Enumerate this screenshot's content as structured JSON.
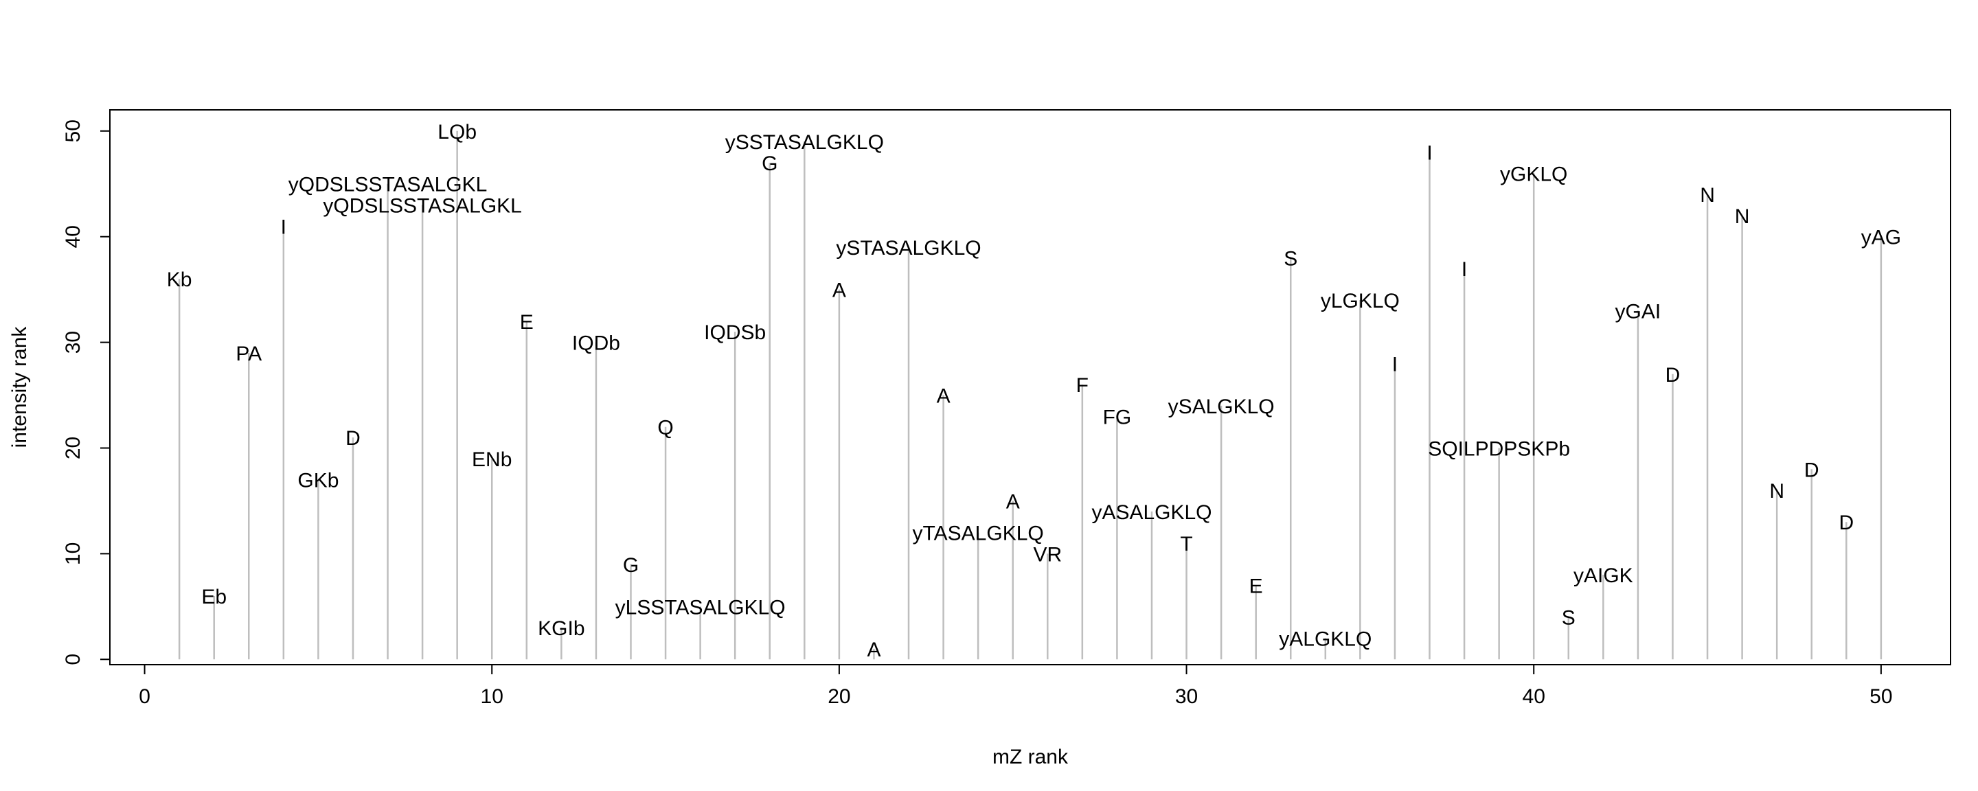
{
  "chart_data": {
    "type": "stem",
    "title": "",
    "xlabel": "mZ rank",
    "ylabel": "intensity rank",
    "xlim": [
      -1,
      52
    ],
    "ylim": [
      -0.5,
      52
    ],
    "xticks": [
      0,
      10,
      20,
      30,
      40,
      50
    ],
    "yticks": [
      0,
      10,
      20,
      30,
      40,
      50
    ],
    "grid": false,
    "stem_color": "#bebebe",
    "points": [
      {
        "x": 1,
        "y": 36,
        "label": "Kb"
      },
      {
        "x": 2,
        "y": 6,
        "label": "Eb"
      },
      {
        "x": 3,
        "y": 29,
        "label": "PA"
      },
      {
        "x": 4,
        "y": 41,
        "label": "I"
      },
      {
        "x": 5,
        "y": 17,
        "label": "GKb"
      },
      {
        "x": 6,
        "y": 21,
        "label": "D"
      },
      {
        "x": 7,
        "y": 45,
        "label": "yQDSLSSTASALGKL"
      },
      {
        "x": 8,
        "y": 43,
        "label": "yQDSLSSTASALGKL"
      },
      {
        "x": 9,
        "y": 50,
        "label": "LQb"
      },
      {
        "x": 10,
        "y": 19,
        "label": "ENb"
      },
      {
        "x": 11,
        "y": 32,
        "label": "E"
      },
      {
        "x": 12,
        "y": 3,
        "label": "KGIb"
      },
      {
        "x": 13,
        "y": 30,
        "label": "IQDb"
      },
      {
        "x": 14,
        "y": 9,
        "label": "G"
      },
      {
        "x": 15,
        "y": 22,
        "label": "Q"
      },
      {
        "x": 16,
        "y": 5,
        "label": "yLSSTASALGKLQ"
      },
      {
        "x": 17,
        "y": 31,
        "label": "IQDSb"
      },
      {
        "x": 18,
        "y": 47,
        "label": "G"
      },
      {
        "x": 19,
        "y": 49,
        "label": "ySSTASALGKLQ"
      },
      {
        "x": 20,
        "y": 35,
        "label": "A"
      },
      {
        "x": 21,
        "y": 1,
        "label": "A"
      },
      {
        "x": 22,
        "y": 39,
        "label": "ySTASALGKLQ"
      },
      {
        "x": 23,
        "y": 25,
        "label": "A"
      },
      {
        "x": 24,
        "y": 12,
        "label": "yTASALGKLQ"
      },
      {
        "x": 25,
        "y": 15,
        "label": "A"
      },
      {
        "x": 26,
        "y": 10,
        "label": "VR"
      },
      {
        "x": 27,
        "y": 26,
        "label": "F"
      },
      {
        "x": 28,
        "y": 23,
        "label": "FG"
      },
      {
        "x": 29,
        "y": 14,
        "label": "yASALGKLQ"
      },
      {
        "x": 30,
        "y": 11,
        "label": "T"
      },
      {
        "x": 31,
        "y": 24,
        "label": "ySALGKLQ"
      },
      {
        "x": 32,
        "y": 7,
        "label": "E"
      },
      {
        "x": 33,
        "y": 38,
        "label": "S"
      },
      {
        "x": 34,
        "y": 2,
        "label": "yALGKLQ"
      },
      {
        "x": 35,
        "y": 34,
        "label": "yLGKLQ"
      },
      {
        "x": 36,
        "y": 28,
        "label": "I"
      },
      {
        "x": 37,
        "y": 48,
        "label": "I"
      },
      {
        "x": 38,
        "y": 37,
        "label": "I"
      },
      {
        "x": 39,
        "y": 20,
        "label": "SQILPDPSKPb"
      },
      {
        "x": 40,
        "y": 46,
        "label": "yGKLQ"
      },
      {
        "x": 41,
        "y": 4,
        "label": "S"
      },
      {
        "x": 42,
        "y": 8,
        "label": "yAIGK"
      },
      {
        "x": 43,
        "y": 33,
        "label": "yGAI"
      },
      {
        "x": 44,
        "y": 27,
        "label": "D"
      },
      {
        "x": 45,
        "y": 44,
        "label": "N"
      },
      {
        "x": 46,
        "y": 42,
        "label": "N"
      },
      {
        "x": 47,
        "y": 16,
        "label": "N"
      },
      {
        "x": 48,
        "y": 18,
        "label": "D"
      },
      {
        "x": 49,
        "y": 13,
        "label": "D"
      },
      {
        "x": 50,
        "y": 40,
        "label": "yAG"
      }
    ]
  }
}
